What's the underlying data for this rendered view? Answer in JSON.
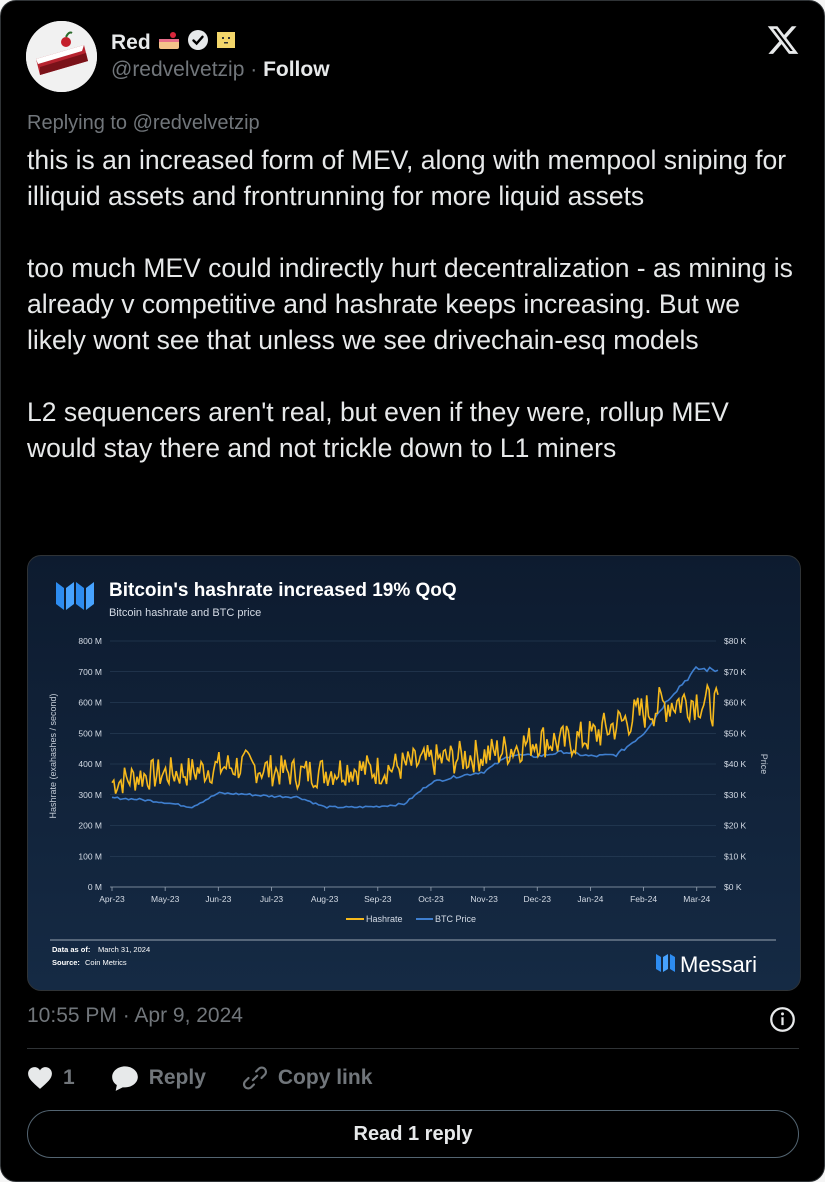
{
  "tweet": {
    "author_name": "Red",
    "author_handle": "@redvelvetzip",
    "dot": "·",
    "follow_label": "Follow",
    "replying_to": "Replying to @redvelvetzip",
    "text": "this is an increased form of MEV, along with mempool sniping for illiquid assets and frontrunning for more liquid assets\n\ntoo much MEV could indirectly hurt decentralization - as mining is already v competitive and hashrate keeps increasing. But we likely wont see that unless we see drivechain-esq models\n\nL2 sequencers aren't real, but even if they were, rollup MEV would stay there and not trickle down to L1 miners",
    "timestamp": "10:55 PM · Apr 9, 2024",
    "like_count": "1",
    "reply_label": "Reply",
    "copy_link_label": "Copy link",
    "read_replies_label": "Read 1 reply",
    "badges": [
      "cake-emoji",
      "verified-badge",
      "box-face-emoji"
    ]
  },
  "colors": {
    "background": "#000000",
    "text": "#e7e9ea",
    "muted": "#71767b",
    "hashrate": "#f6b91c",
    "btc_price": "#3f7fcf"
  },
  "chart_data": {
    "type": "line",
    "title": "Bitcoin's hashrate increased 19% QoQ",
    "subtitle": "Bitcoin hashrate and BTC price",
    "ylabel": "Hashrate (exahashes / second)",
    "y2label": "Price",
    "ylim": [
      0,
      800
    ],
    "y2lim": [
      0,
      80000
    ],
    "yticks": [
      "0 M",
      "100 M",
      "200 M",
      "300 M",
      "400 M",
      "500 M",
      "600 M",
      "700 M",
      "800 M"
    ],
    "y2ticks": [
      "$0 K",
      "$10 K",
      "$20 K",
      "$30 K",
      "$40 K",
      "$50 K",
      "$60 K",
      "$70 K",
      "$80 K"
    ],
    "categories": [
      "Apr-23",
      "May-23",
      "Jun-23",
      "Jul-23",
      "Aug-23",
      "Sep-23",
      "Oct-23",
      "Nov-23",
      "Dec-23",
      "Jan-24",
      "Feb-24",
      "Mar-24"
    ],
    "legend_position": "bottom",
    "series": [
      {
        "name": "Hashrate",
        "axis": "left",
        "x": [
          0,
          0.5,
          1,
          1.5,
          2,
          2.5,
          3,
          3.5,
          4,
          4.5,
          5,
          5.5,
          6,
          6.5,
          7,
          7.5,
          8,
          8.5,
          9,
          9.5,
          10,
          10.5,
          11,
          11.4
        ],
        "values": [
          340,
          360,
          370,
          375,
          390,
          395,
          380,
          370,
          375,
          385,
          380,
          395,
          410,
          420,
          430,
          450,
          480,
          470,
          490,
          530,
          570,
          600,
          610,
          580
        ]
      },
      {
        "name": "BTC Price",
        "axis": "right",
        "x": [
          0,
          0.5,
          1,
          1.5,
          2,
          2.5,
          3,
          3.5,
          4,
          4.5,
          5,
          5.5,
          6,
          6.5,
          7,
          7.5,
          8,
          8.5,
          9,
          9.5,
          10,
          10.5,
          11,
          11.4
        ],
        "values": [
          29000,
          28500,
          27500,
          26000,
          30500,
          30200,
          29500,
          29300,
          26000,
          25900,
          26200,
          27000,
          34000,
          36000,
          37500,
          43000,
          42500,
          44000,
          42500,
          43000,
          50000,
          62000,
          71000,
          70500
        ]
      }
    ],
    "footnote_label": "Data as of:",
    "footnote_date": "March 31, 2024",
    "source_label": "Source:",
    "source": "Coin Metrics",
    "brand": "Messari"
  }
}
